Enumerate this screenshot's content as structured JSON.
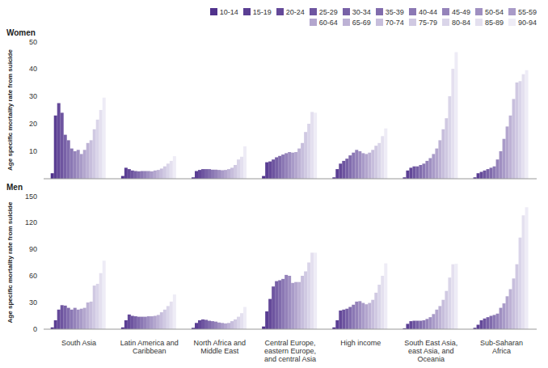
{
  "chart_data": [
    {
      "type": "bar",
      "title": "Women",
      "y_label": "Age specific mortality rate from suicide",
      "legend": "top-right",
      "grid": false,
      "tick_labels": "y",
      "categories": [
        "South Asia",
        "Latin America and Caribbean",
        "North Africa and Middle East",
        "Central Europe, eastern Europe, and central Asia",
        "High income",
        "South East Asia, east Asia, and Oceania",
        "Sub-Saharan Africa"
      ],
      "ylim": [
        0,
        50
      ],
      "yticks": [
        0,
        10,
        20,
        30,
        40,
        50
      ],
      "series": [
        {
          "name": "10-14",
          "color": "#50328c",
          "values": [
            2,
            1,
            0.5,
            1,
            0.5,
            0.5,
            0.5
          ]
        },
        {
          "name": "15-19",
          "color": "#5a3e93",
          "values": [
            23,
            4,
            2.8,
            6,
            3.5,
            3,
            2
          ]
        },
        {
          "name": "20-24",
          "color": "#644999",
          "values": [
            27.5,
            3.5,
            3.2,
            6.3,
            5.5,
            4,
            2.5
          ]
        },
        {
          "name": "25-29",
          "color": "#6e55a0",
          "values": [
            24,
            3,
            3.5,
            7,
            6.5,
            4.5,
            3
          ]
        },
        {
          "name": "30-34",
          "color": "#7861a7",
          "values": [
            16,
            2.8,
            3.5,
            7.8,
            7.3,
            4.5,
            3.5
          ]
        },
        {
          "name": "35-39",
          "color": "#816cad",
          "values": [
            14,
            2.7,
            3.5,
            8.3,
            8.5,
            5,
            4
          ]
        },
        {
          "name": "40-44",
          "color": "#8b78b4",
          "values": [
            11,
            2.8,
            3.3,
            8.8,
            9.5,
            5.5,
            4.5
          ]
        },
        {
          "name": "45-49",
          "color": "#9583ba",
          "values": [
            10,
            2.8,
            3.3,
            9.3,
            10.5,
            6.5,
            7
          ]
        },
        {
          "name": "50-54",
          "color": "#9f8fc1",
          "values": [
            10.5,
            2.8,
            3.2,
            9.7,
            10,
            7.5,
            10
          ]
        },
        {
          "name": "55-59",
          "color": "#a99bc8",
          "values": [
            9,
            2.7,
            3.1,
            9.5,
            9.3,
            9,
            14.5
          ]
        },
        {
          "name": "60-64",
          "color": "#b3a6ce",
          "values": [
            10.5,
            3,
            3.2,
            9.7,
            9,
            11,
            19
          ]
        },
        {
          "name": "65-69",
          "color": "#bdb2d5",
          "values": [
            13,
            3.2,
            3.5,
            11,
            9.5,
            14,
            23
          ]
        },
        {
          "name": "70-74",
          "color": "#c7bedc",
          "values": [
            14,
            3.7,
            4,
            13,
            10.5,
            18,
            29
          ]
        },
        {
          "name": "75-79",
          "color": "#d0c9e2",
          "values": [
            18,
            4.5,
            5,
            17,
            12,
            22,
            35
          ]
        },
        {
          "name": "80-84",
          "color": "#dad5e9",
          "values": [
            21.5,
            5.5,
            7,
            20,
            13,
            30,
            35.5
          ]
        },
        {
          "name": "85-89",
          "color": "#e4e0ef",
          "values": [
            25,
            6.5,
            8,
            24.3,
            15.5,
            40,
            38
          ]
        },
        {
          "name": "90-94",
          "color": "#eeecf6",
          "values": [
            29.5,
            8.2,
            11.8,
            24,
            18.3,
            46,
            39.5
          ]
        }
      ]
    },
    {
      "type": "bar",
      "title": "Men",
      "y_label": "Age specific mortality rate from suicide",
      "grid": false,
      "categories": [
        "South Asia",
        "Latin America and Caribbean",
        "North Africa and Middle East",
        "Central Europe, eastern Europe, and central Asia",
        "High income",
        "South East Asia, east Asia, and Oceania",
        "Sub-Saharan Africa"
      ],
      "ylim": [
        0,
        150
      ],
      "yticks": [
        0,
        30,
        60,
        90,
        120,
        150
      ],
      "series": [
        {
          "name": "10-14",
          "color": "#50328c",
          "values": [
            2,
            2,
            1.5,
            3,
            2,
            1,
            1.5
          ]
        },
        {
          "name": "15-19",
          "color": "#5a3e93",
          "values": [
            10,
            10,
            7,
            20,
            10,
            6,
            5
          ]
        },
        {
          "name": "20-24",
          "color": "#644999",
          "values": [
            22,
            16.5,
            10,
            34,
            21,
            9,
            10
          ]
        },
        {
          "name": "25-29",
          "color": "#6e55a0",
          "values": [
            27,
            15,
            11,
            48,
            22,
            9.5,
            12
          ]
        },
        {
          "name": "30-34",
          "color": "#7861a7",
          "values": [
            26.5,
            14.5,
            10.5,
            54,
            23,
            9.5,
            13.5
          ]
        },
        {
          "name": "35-39",
          "color": "#816cad",
          "values": [
            24,
            14,
            9.5,
            55,
            25,
            9.5,
            15
          ]
        },
        {
          "name": "40-44",
          "color": "#8b78b4",
          "values": [
            22,
            14,
            9,
            56.5,
            27.5,
            10,
            16
          ]
        },
        {
          "name": "45-49",
          "color": "#9583ba",
          "values": [
            24,
            14,
            8.5,
            61,
            31,
            11.5,
            17.5
          ]
        },
        {
          "name": "50-54",
          "color": "#9f8fc1",
          "values": [
            22,
            14.5,
            7.5,
            60,
            31.5,
            13.5,
            24
          ]
        },
        {
          "name": "55-59",
          "color": "#a99bc8",
          "values": [
            23,
            14.5,
            7,
            52,
            29.5,
            17,
            29
          ]
        },
        {
          "name": "60-64",
          "color": "#b3a6ce",
          "values": [
            24,
            15,
            6.5,
            53,
            28,
            22,
            37
          ]
        },
        {
          "name": "65-69",
          "color": "#bdb2d5",
          "values": [
            30,
            16,
            7,
            53,
            29.5,
            26,
            45
          ]
        },
        {
          "name": "70-74",
          "color": "#c7bedc",
          "values": [
            31,
            19,
            9,
            60,
            33,
            33,
            57
          ]
        },
        {
          "name": "75-79",
          "color": "#d0c9e2",
          "values": [
            49,
            22,
            11,
            65,
            41,
            43,
            73
          ]
        },
        {
          "name": "80-84",
          "color": "#dad5e9",
          "values": [
            51,
            26,
            14,
            75,
            50,
            58,
            103
          ]
        },
        {
          "name": "85-89",
          "color": "#e4e0ef",
          "values": [
            63,
            31,
            18,
            86,
            60,
            73,
            128
          ]
        },
        {
          "name": "90-94",
          "color": "#eeecf6",
          "values": [
            77,
            39,
            25,
            86,
            74,
            73.5,
            137
          ]
        }
      ]
    }
  ]
}
